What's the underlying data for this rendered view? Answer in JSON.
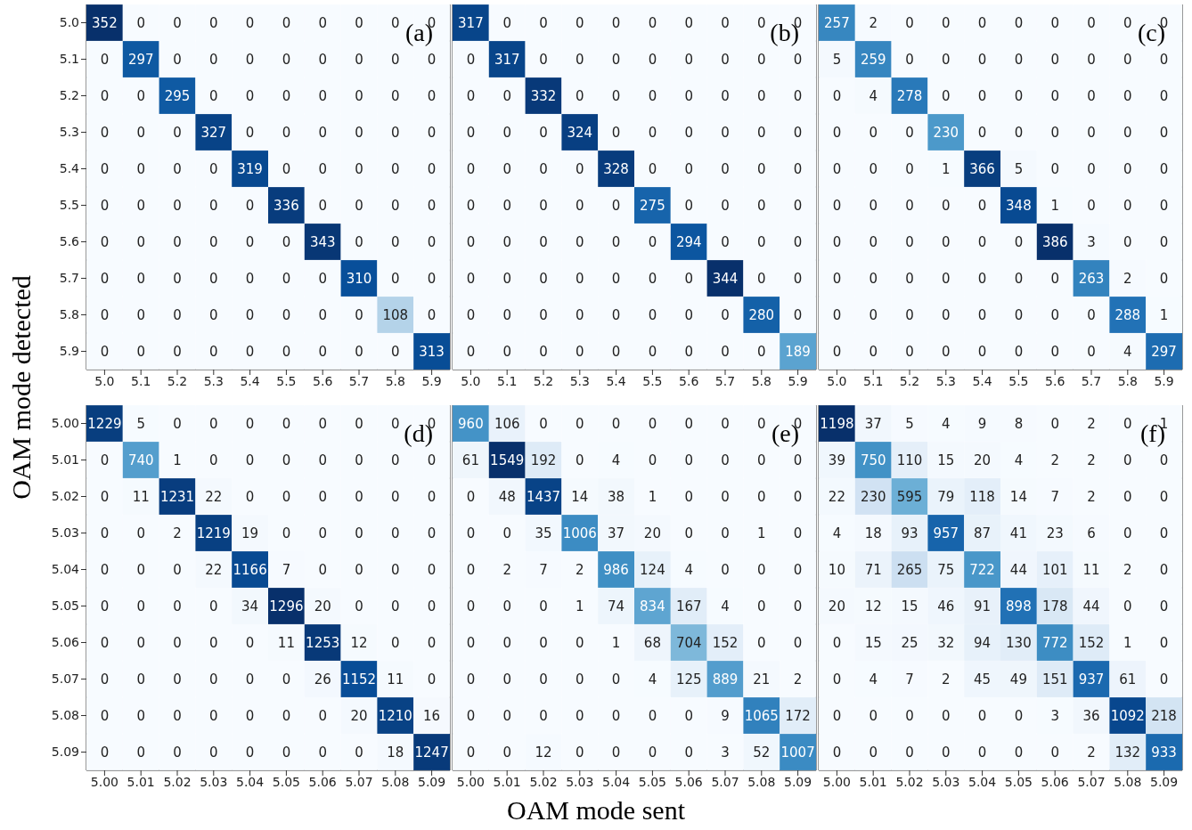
{
  "chart_data": [
    {
      "type": "heatmap",
      "ylabel": "OAM mode detected",
      "annotations": [
        "(a)"
      ],
      "data_labels": true,
      "categories": [
        "5.0",
        "5.1",
        "5.2",
        "5.3",
        "5.4",
        "5.5",
        "5.6",
        "5.7",
        "5.8",
        "5.9"
      ],
      "y_categories": [
        "5.0",
        "5.1",
        "5.2",
        "5.3",
        "5.4",
        "5.5",
        "5.6",
        "5.7",
        "5.8",
        "5.9"
      ],
      "cells": [
        [
          352,
          0,
          0,
          0,
          0,
          0,
          0,
          0,
          0,
          0
        ],
        [
          0,
          297,
          0,
          0,
          0,
          0,
          0,
          0,
          0,
          0
        ],
        [
          0,
          0,
          295,
          0,
          0,
          0,
          0,
          0,
          0,
          0
        ],
        [
          0,
          0,
          0,
          327,
          0,
          0,
          0,
          0,
          0,
          0
        ],
        [
          0,
          0,
          0,
          0,
          319,
          0,
          0,
          0,
          0,
          0
        ],
        [
          0,
          0,
          0,
          0,
          0,
          336,
          0,
          0,
          0,
          0
        ],
        [
          0,
          0,
          0,
          0,
          0,
          0,
          343,
          0,
          0,
          0
        ],
        [
          0,
          0,
          0,
          0,
          0,
          0,
          0,
          310,
          0,
          0
        ],
        [
          0,
          0,
          0,
          0,
          0,
          0,
          0,
          0,
          108,
          0
        ],
        [
          0,
          0,
          0,
          0,
          0,
          0,
          0,
          0,
          0,
          313
        ]
      ]
    },
    {
      "type": "heatmap",
      "annotations": [
        "(b)"
      ],
      "data_labels": true,
      "tick_labels": "x",
      "categories": [
        "5.0",
        "5.1",
        "5.2",
        "5.3",
        "5.4",
        "5.5",
        "5.6",
        "5.7",
        "5.8",
        "5.9"
      ],
      "y_categories": [
        "5.0",
        "5.1",
        "5.2",
        "5.3",
        "5.4",
        "5.5",
        "5.6",
        "5.7",
        "5.8",
        "5.9"
      ],
      "cells": [
        [
          317,
          0,
          0,
          0,
          0,
          0,
          0,
          0,
          0,
          0
        ],
        [
          0,
          317,
          0,
          0,
          0,
          0,
          0,
          0,
          0,
          0
        ],
        [
          0,
          0,
          332,
          0,
          0,
          0,
          0,
          0,
          0,
          0
        ],
        [
          0,
          0,
          0,
          324,
          0,
          0,
          0,
          0,
          0,
          0
        ],
        [
          0,
          0,
          0,
          0,
          328,
          0,
          0,
          0,
          0,
          0
        ],
        [
          0,
          0,
          0,
          0,
          0,
          275,
          0,
          0,
          0,
          0
        ],
        [
          0,
          0,
          0,
          0,
          0,
          0,
          294,
          0,
          0,
          0
        ],
        [
          0,
          0,
          0,
          0,
          0,
          0,
          0,
          344,
          0,
          0
        ],
        [
          0,
          0,
          0,
          0,
          0,
          0,
          0,
          0,
          280,
          0
        ],
        [
          0,
          0,
          0,
          0,
          0,
          0,
          0,
          0,
          0,
          189
        ]
      ]
    },
    {
      "type": "heatmap",
      "annotations": [
        "(c)"
      ],
      "data_labels": true,
      "tick_labels": "x",
      "categories": [
        "5.0",
        "5.1",
        "5.2",
        "5.3",
        "5.4",
        "5.5",
        "5.6",
        "5.7",
        "5.8",
        "5.9"
      ],
      "y_categories": [
        "5.0",
        "5.1",
        "5.2",
        "5.3",
        "5.4",
        "5.5",
        "5.6",
        "5.7",
        "5.8",
        "5.9"
      ],
      "cells": [
        [
          257,
          2,
          0,
          0,
          0,
          0,
          0,
          0,
          0,
          0
        ],
        [
          5,
          259,
          0,
          0,
          0,
          0,
          0,
          0,
          0,
          0
        ],
        [
          0,
          4,
          278,
          0,
          0,
          0,
          0,
          0,
          0,
          0
        ],
        [
          0,
          0,
          0,
          230,
          0,
          0,
          0,
          0,
          0,
          0
        ],
        [
          0,
          0,
          0,
          1,
          366,
          5,
          0,
          0,
          0,
          0
        ],
        [
          0,
          0,
          0,
          0,
          0,
          348,
          1,
          0,
          0,
          0
        ],
        [
          0,
          0,
          0,
          0,
          0,
          0,
          386,
          3,
          0,
          0
        ],
        [
          0,
          0,
          0,
          0,
          0,
          0,
          0,
          263,
          2,
          0
        ],
        [
          0,
          0,
          0,
          0,
          0,
          0,
          0,
          0,
          288,
          1
        ],
        [
          0,
          0,
          0,
          0,
          0,
          0,
          0,
          0,
          4,
          297
        ]
      ]
    },
    {
      "type": "heatmap",
      "annotations": [
        "(d)"
      ],
      "data_labels": true,
      "categories": [
        "5.00",
        "5.01",
        "5.02",
        "5.03",
        "5.04",
        "5.05",
        "5.06",
        "5.07",
        "5.08",
        "5.09"
      ],
      "y_categories": [
        "5.00",
        "5.01",
        "5.02",
        "5.03",
        "5.04",
        "5.05",
        "5.06",
        "5.07",
        "5.08",
        "5.09"
      ],
      "cells": [
        [
          1229,
          5,
          0,
          0,
          0,
          0,
          0,
          0,
          0,
          0
        ],
        [
          0,
          740,
          1,
          0,
          0,
          0,
          0,
          0,
          0,
          0
        ],
        [
          0,
          11,
          1231,
          22,
          0,
          0,
          0,
          0,
          0,
          0
        ],
        [
          0,
          0,
          2,
          1219,
          19,
          0,
          0,
          0,
          0,
          0
        ],
        [
          0,
          0,
          0,
          22,
          1166,
          7,
          0,
          0,
          0,
          0
        ],
        [
          0,
          0,
          0,
          0,
          34,
          1296,
          20,
          0,
          0,
          0
        ],
        [
          0,
          0,
          0,
          0,
          0,
          11,
          1253,
          12,
          0,
          0
        ],
        [
          0,
          0,
          0,
          0,
          0,
          0,
          26,
          1152,
          11,
          0
        ],
        [
          0,
          0,
          0,
          0,
          0,
          0,
          0,
          20,
          1210,
          16
        ],
        [
          0,
          0,
          0,
          0,
          0,
          0,
          0,
          0,
          18,
          1247
        ]
      ]
    },
    {
      "type": "heatmap",
      "xlabel": "OAM mode sent",
      "annotations": [
        "(e)"
      ],
      "data_labels": true,
      "tick_labels": "x",
      "categories": [
        "5.00",
        "5.01",
        "5.02",
        "5.03",
        "5.04",
        "5.05",
        "5.06",
        "5.07",
        "5.08",
        "5.09"
      ],
      "y_categories": [
        "5.00",
        "5.01",
        "5.02",
        "5.03",
        "5.04",
        "5.05",
        "5.06",
        "5.07",
        "5.08",
        "5.09"
      ],
      "cells": [
        [
          960,
          106,
          0,
          0,
          0,
          0,
          0,
          0,
          0,
          0
        ],
        [
          61,
          1549,
          192,
          0,
          4,
          0,
          0,
          0,
          0,
          0
        ],
        [
          0,
          48,
          1437,
          14,
          38,
          1,
          0,
          0,
          0,
          0
        ],
        [
          0,
          0,
          35,
          1006,
          37,
          20,
          0,
          0,
          1,
          0
        ],
        [
          0,
          2,
          7,
          2,
          986,
          124,
          4,
          0,
          0,
          0
        ],
        [
          0,
          0,
          0,
          1,
          74,
          834,
          167,
          4,
          0,
          0
        ],
        [
          0,
          0,
          0,
          0,
          1,
          68,
          704,
          152,
          0,
          0
        ],
        [
          0,
          0,
          0,
          0,
          0,
          4,
          125,
          889,
          21,
          2
        ],
        [
          0,
          0,
          0,
          0,
          0,
          0,
          0,
          9,
          1065,
          172
        ],
        [
          0,
          0,
          12,
          0,
          0,
          0,
          0,
          3,
          52,
          1007
        ]
      ]
    },
    {
      "type": "heatmap",
      "annotations": [
        "(f)"
      ],
      "data_labels": true,
      "tick_labels": "x",
      "categories": [
        "5.00",
        "5.01",
        "5.02",
        "5.03",
        "5.04",
        "5.05",
        "5.06",
        "5.07",
        "5.08",
        "5.09"
      ],
      "y_categories": [
        "5.00",
        "5.01",
        "5.02",
        "5.03",
        "5.04",
        "5.05",
        "5.06",
        "5.07",
        "5.08",
        "5.09"
      ],
      "cells": [
        [
          1198,
          37,
          5,
          4,
          9,
          8,
          0,
          2,
          0,
          1
        ],
        [
          39,
          750,
          110,
          15,
          20,
          4,
          2,
          2,
          0,
          0
        ],
        [
          22,
          230,
          595,
          79,
          118,
          14,
          7,
          2,
          0,
          0
        ],
        [
          4,
          18,
          93,
          957,
          87,
          41,
          23,
          6,
          0,
          0
        ],
        [
          10,
          71,
          265,
          75,
          722,
          44,
          101,
          11,
          2,
          0
        ],
        [
          20,
          12,
          15,
          46,
          91,
          898,
          178,
          44,
          0,
          0
        ],
        [
          0,
          15,
          25,
          32,
          94,
          130,
          772,
          152,
          1,
          0
        ],
        [
          0,
          4,
          7,
          2,
          45,
          49,
          151,
          937,
          61,
          0
        ],
        [
          0,
          0,
          0,
          0,
          0,
          0,
          3,
          36,
          1092,
          218
        ],
        [
          0,
          0,
          0,
          0,
          0,
          0,
          0,
          2,
          132,
          933
        ]
      ]
    }
  ]
}
